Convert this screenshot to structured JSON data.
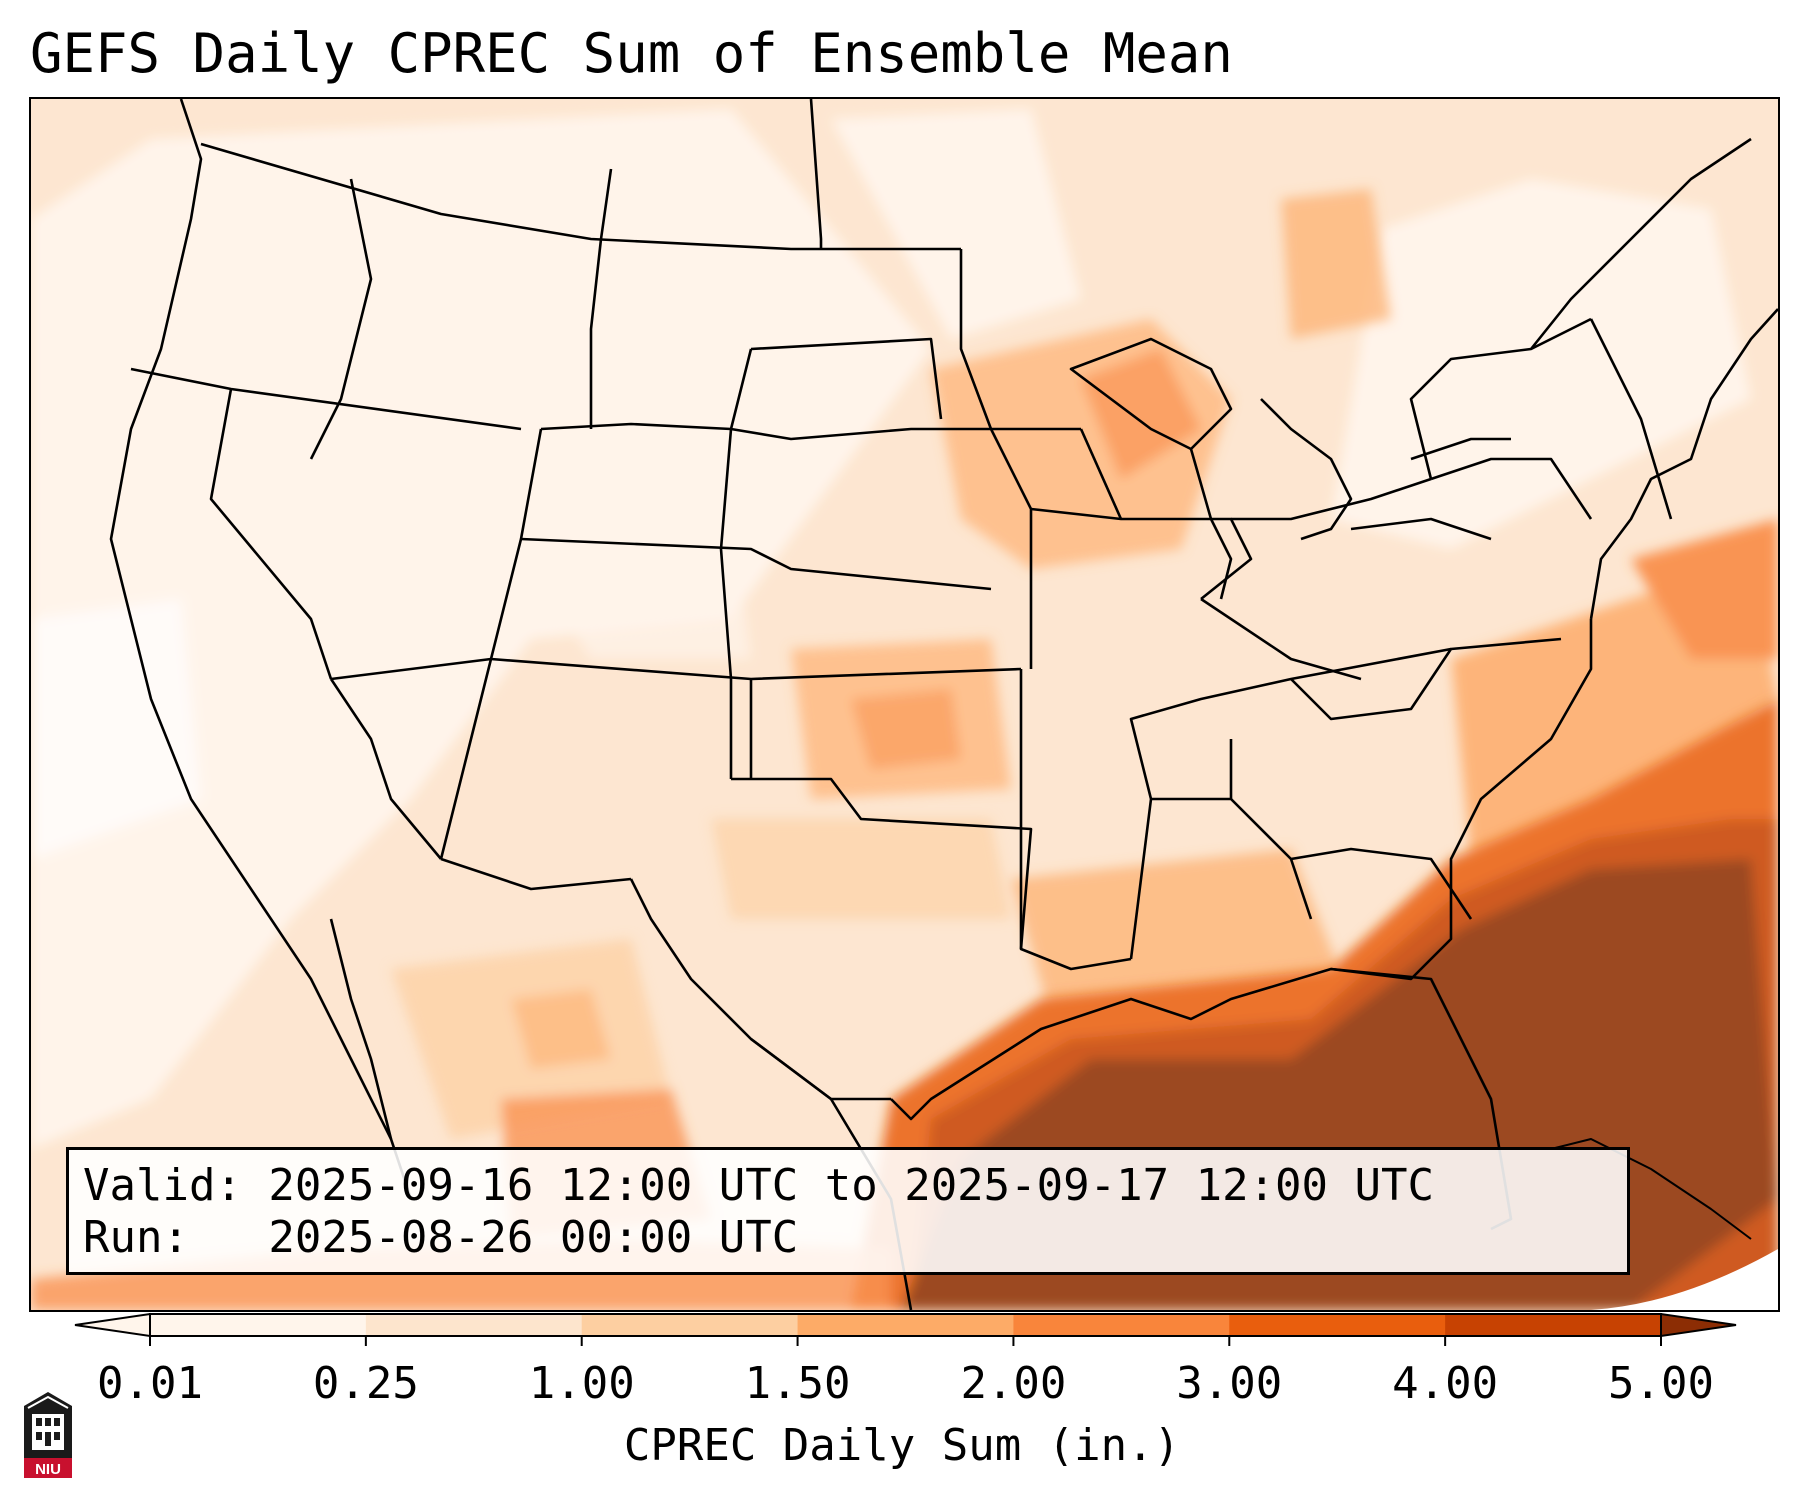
{
  "title": "GEFS Daily CPREC Sum of Ensemble Mean",
  "info": {
    "valid_line": "Valid: 2025-09-16 12:00 UTC to 2025-09-17 12:00 UTC",
    "run_line": "Run:   2025-08-26 00:00 UTC"
  },
  "colorbar": {
    "label": "CPREC Daily Sum (in.)",
    "ticks": [
      "0.01",
      "0.25",
      "1.00",
      "1.50",
      "2.00",
      "3.00",
      "4.00",
      "5.00"
    ],
    "colors": [
      "#fff5eb",
      "#fde5cd",
      "#fdcfa1",
      "#fdab67",
      "#f9853b",
      "#e95e0d",
      "#c74202",
      "#8c2d04"
    ],
    "extend": "both"
  },
  "logo": {
    "text": "NIU",
    "colors": {
      "crimson": "#c8102e",
      "black": "#1a1a1a"
    }
  }
}
